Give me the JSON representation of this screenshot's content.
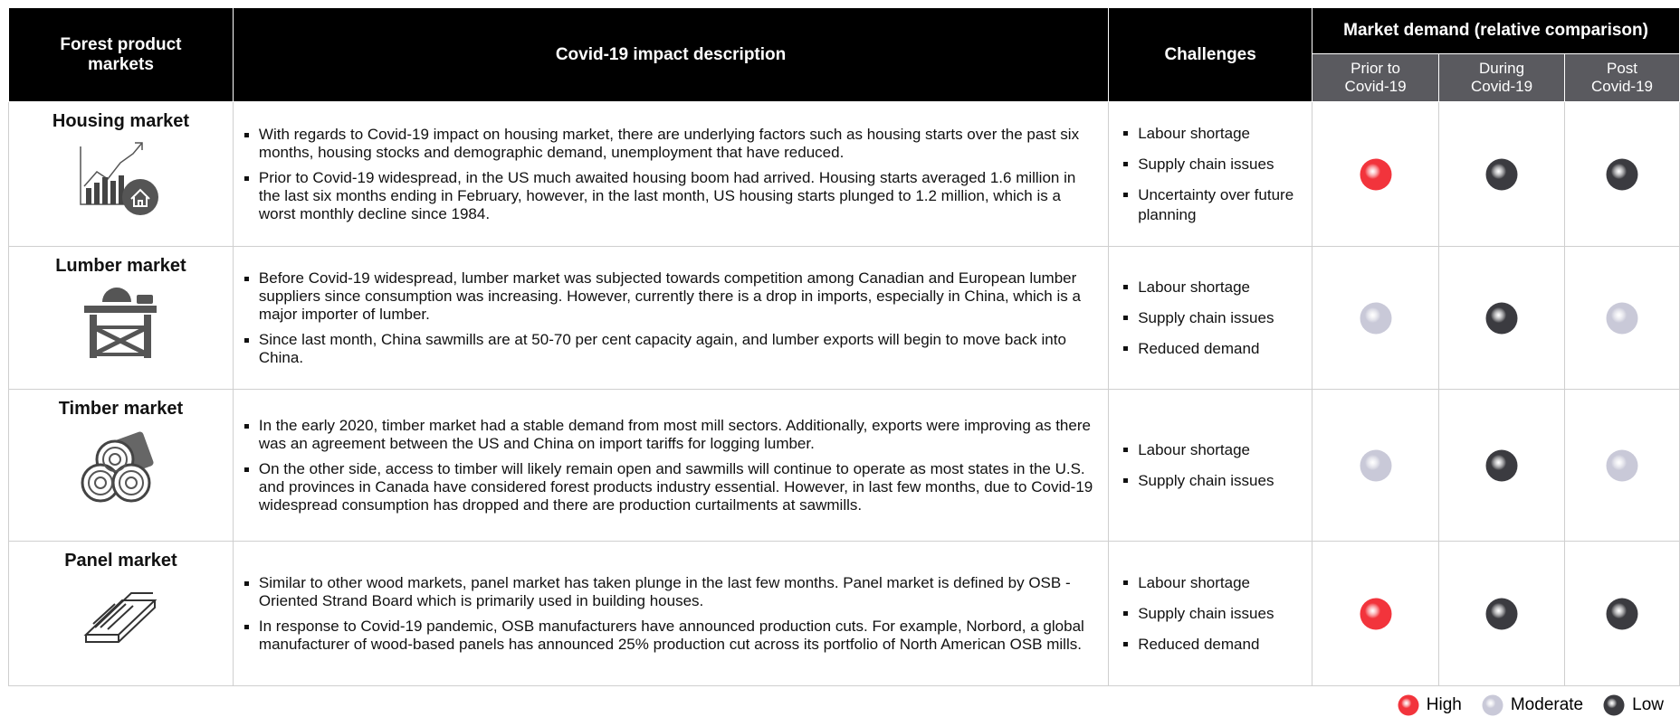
{
  "header": {
    "markets": "Forest product markets",
    "description": "Covid-19 impact description",
    "challenges": "Challenges",
    "demand": "Market demand (relative comparison)",
    "periods": [
      "Prior to Covid-19",
      "During Covid-19",
      "Post Covid-19"
    ]
  },
  "rows": [
    {
      "market": "Housing market",
      "description": [
        "With regards to Covid-19 impact on housing market, there are underlying factors such as housing starts over the past six months, housing stocks and demographic demand, unemployment that have reduced.",
        "Prior to Covid-19 widespread, in the US much awaited housing boom had arrived. Housing starts averaged 1.6 million in the last six months ending in February, however, in the last month, US housing starts plunged to 1.2 million, which is a worst monthly decline since 1984."
      ],
      "challenges": [
        "Labour shortage",
        "Supply chain issues",
        "Uncertainty over future planning"
      ],
      "demand": [
        "High",
        "Low",
        "Low"
      ]
    },
    {
      "market": "Lumber market",
      "description": [
        "Before Covid-19 widespread, lumber market was subjected towards competition among Canadian and European lumber suppliers since consumption was increasing. However, currently there is a drop in imports, especially in China, which is a major importer of lumber.",
        "Since last month, China sawmills are at 50-70 per cent capacity again, and lumber exports will begin to move back into China."
      ],
      "challenges": [
        "Labour shortage",
        "Supply chain issues",
        "Reduced demand"
      ],
      "demand": [
        "Moderate",
        "Low",
        "Moderate"
      ]
    },
    {
      "market": "Timber market",
      "description": [
        "In the early 2020, timber market had a stable demand from most mill sectors. Additionally, exports were improving as there was an agreement between the US and China on import tariffs for logging lumber.",
        "On the other side, access to timber will likely remain open and sawmills will continue to operate as most states in the U.S. and provinces in Canada have considered forest products industry essential. However, in last few months, due to Covid-19 widespread consumption has dropped and there are production curtailments at sawmills."
      ],
      "challenges": [
        "Labour shortage",
        "Supply chain issues"
      ],
      "demand": [
        "Moderate",
        "Low",
        "Moderate"
      ]
    },
    {
      "market": "Panel market",
      "description": [
        "Similar to other wood markets, panel market has taken plunge in the last few months. Panel market is defined by OSB - Oriented Strand Board which is primarily used in building houses.",
        "In response to Covid-19 pandemic, OSB manufacturers have announced production cuts. For example, Norbord, a global manufacturer of wood-based panels has announced 25% production cut across its portfolio of North American OSB mills."
      ],
      "challenges": [
        "Labour shortage",
        "Supply chain issues",
        "Reduced demand"
      ],
      "demand": [
        "High",
        "Low",
        "Low"
      ]
    }
  ],
  "legend": [
    {
      "label": "High",
      "color": "#f2343c"
    },
    {
      "label": "Moderate",
      "color": "#c9c9d8"
    },
    {
      "label": "Low",
      "color": "#3b3b40"
    }
  ]
}
